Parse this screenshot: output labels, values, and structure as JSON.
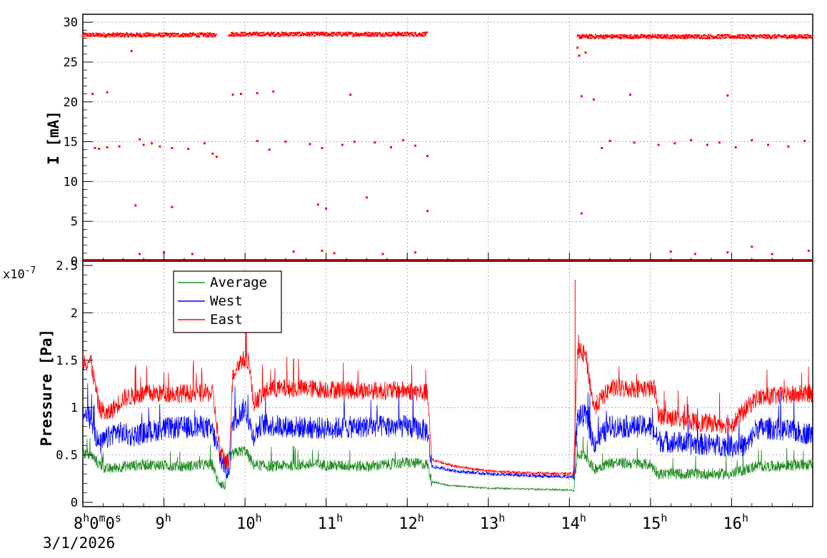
{
  "chart_data": [
    {
      "type": "scatter",
      "title": "",
      "ylabel": "I [mA]",
      "ylim": [
        0,
        31
      ],
      "y_ticks": [
        "0",
        "5",
        "10",
        "15",
        "20",
        "25",
        "30"
      ],
      "grid": true,
      "series": [
        {
          "color": "#ff0000",
          "description_of_values": "current samples (hours since 8:00, mA)",
          "segments": [
            {
              "x_range": [
                8.0,
                9.65
              ],
              "level": 28.4
            },
            {
              "x_range": [
                9.8,
                12.25
              ],
              "level": 28.5
            },
            {
              "x_range": [
                14.1,
                17.0
              ],
              "level": 28.2
            }
          ],
          "scattered_points": [
            [
              8.15,
              14.2
            ],
            [
              8.2,
              14.1
            ],
            [
              8.3,
              14.3
            ],
            [
              8.45,
              14.4
            ],
            [
              8.7,
              15.3
            ],
            [
              8.75,
              14.6
            ],
            [
              8.85,
              14.8
            ],
            [
              8.95,
              14.4
            ],
            [
              9.1,
              14.2
            ],
            [
              9.3,
              14.1
            ],
            [
              9.5,
              14.8
            ],
            [
              9.6,
              13.5
            ],
            [
              9.65,
              13.1
            ],
            [
              10.15,
              15.1
            ],
            [
              10.3,
              14.0
            ],
            [
              10.5,
              15.0
            ],
            [
              10.8,
              14.7
            ],
            [
              10.95,
              14.2
            ],
            [
              11.2,
              14.6
            ],
            [
              11.35,
              15.0
            ],
            [
              11.6,
              14.9
            ],
            [
              11.8,
              14.3
            ],
            [
              11.95,
              15.2
            ],
            [
              12.1,
              14.5
            ],
            [
              12.25,
              13.2
            ],
            [
              14.4,
              14.2
            ],
            [
              14.5,
              15.1
            ],
            [
              14.8,
              14.9
            ],
            [
              15.1,
              14.6
            ],
            [
              15.3,
              14.8
            ],
            [
              15.5,
              15.2
            ],
            [
              15.7,
              14.6
            ],
            [
              15.85,
              14.9
            ],
            [
              16.05,
              14.3
            ],
            [
              16.25,
              15.2
            ],
            [
              16.45,
              14.6
            ],
            [
              16.7,
              14.4
            ],
            [
              16.9,
              15.1
            ],
            [
              8.12,
              21.0
            ],
            [
              8.3,
              21.2
            ],
            [
              9.85,
              20.9
            ],
            [
              9.95,
              21.0
            ],
            [
              10.15,
              21.1
            ],
            [
              10.35,
              21.3
            ],
            [
              11.3,
              20.9
            ],
            [
              14.15,
              20.7
            ],
            [
              14.3,
              20.3
            ],
            [
              14.75,
              20.9
            ],
            [
              15.95,
              20.8
            ],
            [
              8.65,
              7.0
            ],
            [
              9.1,
              6.8
            ],
            [
              10.9,
              7.1
            ],
            [
              11.0,
              6.6
            ],
            [
              11.5,
              8.0
            ],
            [
              12.25,
              6.3
            ],
            [
              14.15,
              6.0
            ],
            [
              8.6,
              26.4
            ],
            [
              14.12,
              25.8
            ],
            [
              14.1,
              26.8
            ],
            [
              14.2,
              26.2
            ],
            [
              8.7,
              0.9
            ],
            [
              9.0,
              1.1
            ],
            [
              9.35,
              0.9
            ],
            [
              10.6,
              1.2
            ],
            [
              10.95,
              1.3
            ],
            [
              11.1,
              1.0
            ],
            [
              11.7,
              0.9
            ],
            [
              12.1,
              1.1
            ],
            [
              15.25,
              1.2
            ],
            [
              15.55,
              0.9
            ],
            [
              15.95,
              1.1
            ],
            [
              16.25,
              1.8
            ],
            [
              16.5,
              0.9
            ],
            [
              16.95,
              1.3
            ]
          ],
          "baseline": 0.05
        }
      ]
    },
    {
      "type": "line",
      "title": "",
      "ylabel": "Pressure [Pa]",
      "y_multiplier_label": "x10",
      "y_multiplier_exponent": "-7",
      "ylim": [
        0,
        2.5
      ],
      "y_ticks": [
        "0",
        "0.5",
        "1",
        "1.5",
        "2",
        "2.5"
      ],
      "grid": true,
      "legend_position": "top-left",
      "series": [
        {
          "name": "Average",
          "color": "#228b22",
          "x": [
            8.0,
            8.1,
            8.2,
            8.3,
            8.5,
            8.8,
            9.2,
            9.6,
            9.65,
            9.75,
            9.8,
            9.9,
            10.0,
            10.1,
            10.3,
            10.8,
            11.5,
            12.0,
            12.25,
            12.3,
            12.5,
            13.0,
            13.5,
            14.0,
            14.05,
            14.1,
            14.2,
            14.3,
            14.5,
            15.0,
            15.1,
            15.5,
            16.0,
            16.3,
            16.5,
            17.0
          ],
          "values": [
            0.52,
            0.5,
            0.4,
            0.35,
            0.38,
            0.4,
            0.38,
            0.4,
            0.25,
            0.16,
            0.48,
            0.53,
            0.55,
            0.4,
            0.38,
            0.4,
            0.38,
            0.42,
            0.4,
            0.22,
            0.18,
            0.15,
            0.14,
            0.13,
            0.13,
            0.5,
            0.5,
            0.35,
            0.42,
            0.4,
            0.3,
            0.3,
            0.3,
            0.38,
            0.38,
            0.4
          ],
          "noise": 0.06
        },
        {
          "name": "West",
          "color": "#0000ff",
          "x": [
            8.0,
            8.1,
            8.2,
            8.4,
            8.6,
            9.0,
            9.5,
            9.6,
            9.7,
            9.8,
            9.85,
            9.95,
            10.0,
            10.1,
            10.2,
            10.5,
            11.0,
            11.5,
            12.0,
            12.25,
            12.3,
            12.6,
            13.0,
            13.5,
            14.0,
            14.05,
            14.1,
            14.2,
            14.3,
            14.5,
            15.0,
            15.1,
            15.5,
            16.0,
            16.2,
            16.3,
            16.5,
            17.0
          ],
          "values": [
            0.95,
            0.88,
            0.6,
            0.75,
            0.7,
            0.78,
            0.8,
            0.75,
            0.45,
            0.32,
            0.85,
            0.95,
            1.0,
            0.7,
            0.82,
            0.8,
            0.78,
            0.8,
            0.8,
            0.75,
            0.38,
            0.33,
            0.3,
            0.28,
            0.27,
            0.27,
            0.9,
            0.92,
            0.62,
            0.8,
            0.8,
            0.65,
            0.62,
            0.6,
            0.6,
            0.78,
            0.78,
            0.72
          ],
          "noise": 0.12
        },
        {
          "name": "East",
          "color": "#ff0000",
          "x": [
            8.0,
            8.1,
            8.2,
            8.3,
            8.5,
            8.8,
            9.2,
            9.6,
            9.7,
            9.8,
            9.85,
            9.95,
            10.05,
            10.1,
            10.3,
            10.8,
            11.5,
            12.0,
            12.25,
            12.3,
            12.6,
            13.0,
            13.5,
            14.0,
            14.05,
            14.1,
            14.2,
            14.3,
            14.5,
            14.8,
            15.05,
            15.1,
            15.5,
            16.0,
            16.3,
            16.5,
            17.0
          ],
          "values": [
            1.5,
            1.48,
            1.0,
            0.92,
            1.1,
            1.15,
            1.15,
            1.15,
            0.5,
            0.42,
            1.35,
            1.5,
            1.5,
            1.05,
            1.2,
            1.2,
            1.18,
            1.18,
            1.15,
            0.45,
            0.38,
            0.33,
            0.31,
            0.3,
            0.3,
            1.6,
            1.55,
            1.0,
            1.2,
            1.2,
            1.2,
            0.92,
            0.85,
            0.82,
            1.1,
            1.12,
            1.15
          ],
          "noise": 0.1
        }
      ]
    }
  ],
  "x_axis": {
    "domain": [
      8.0,
      17.0
    ],
    "tick_hours": [
      "8",
      "9",
      "10",
      "11",
      "12",
      "13",
      "14",
      "15",
      "16"
    ],
    "first_tick_suffix": "0",
    "date_label": "3/1/2026"
  }
}
